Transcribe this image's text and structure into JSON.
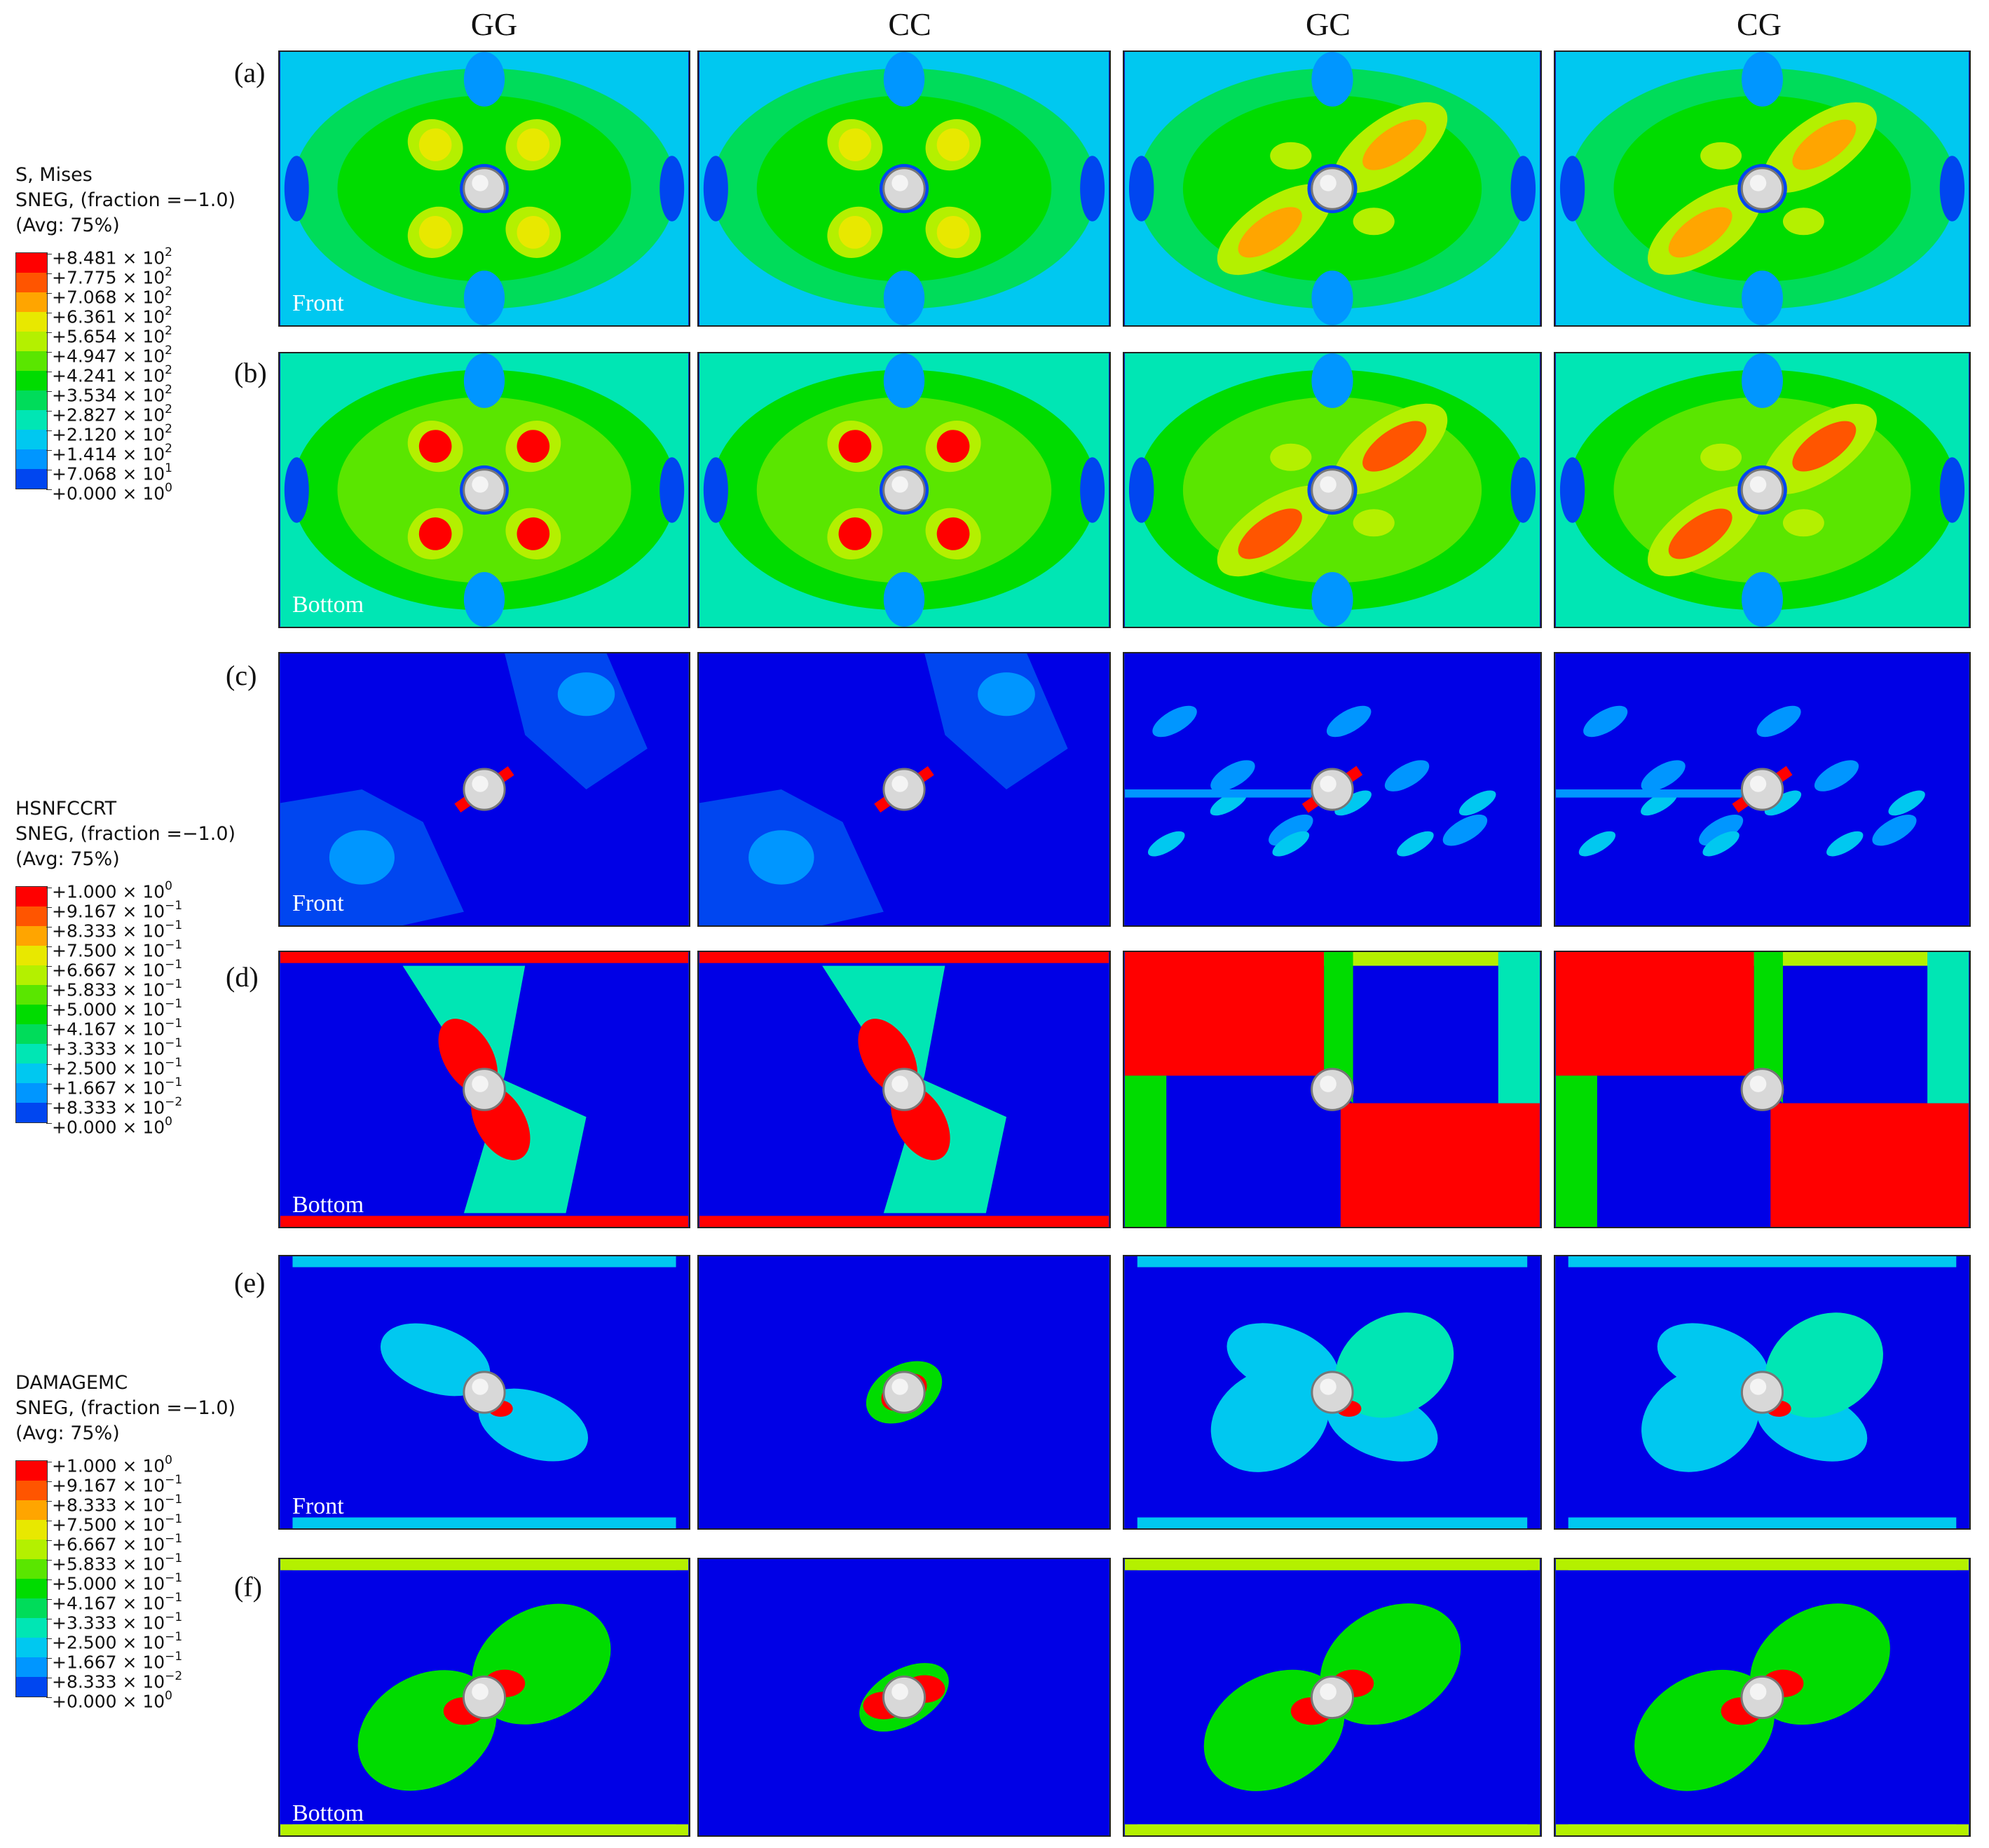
{
  "columns": [
    "GG",
    "CC",
    "GC",
    "CG"
  ],
  "rows": [
    {
      "label": "(a)",
      "face": "Front",
      "field": "mises"
    },
    {
      "label": "(b)",
      "face": "Bottom",
      "field": "mises"
    },
    {
      "label": "(c)",
      "face": "Front",
      "field": "hsn"
    },
    {
      "label": "(d)",
      "face": "Bottom",
      "field": "hsn"
    },
    {
      "label": "(e)",
      "face": "Front",
      "field": "dmg"
    },
    {
      "label": "(f)",
      "face": "Bottom",
      "field": "dmg"
    }
  ],
  "legends": [
    {
      "title_lines": [
        "S, Mises",
        "SNEG, (fraction =−1.0)",
        "(Avg: 75%)"
      ],
      "entries": [
        {
          "m": "+8.481",
          "e": "2"
        },
        {
          "m": "+7.775",
          "e": "2"
        },
        {
          "m": "+7.068",
          "e": "2"
        },
        {
          "m": "+6.361",
          "e": "2"
        },
        {
          "m": "+5.654",
          "e": "2"
        },
        {
          "m": "+4.947",
          "e": "2"
        },
        {
          "m": "+4.241",
          "e": "2"
        },
        {
          "m": "+3.534",
          "e": "2"
        },
        {
          "m": "+2.827",
          "e": "2"
        },
        {
          "m": "+2.120",
          "e": "2"
        },
        {
          "m": "+1.414",
          "e": "2"
        },
        {
          "m": "+7.068",
          "e": "1"
        },
        {
          "m": "+0.000",
          "e": "0"
        }
      ]
    },
    {
      "title_lines": [
        "HSNFCCRT",
        "SNEG, (fraction =−1.0)",
        "(Avg: 75%)"
      ],
      "entries": [
        {
          "m": "+1.000",
          "e": "0"
        },
        {
          "m": "+9.167",
          "e": "−1"
        },
        {
          "m": "+8.333",
          "e": "−1"
        },
        {
          "m": "+7.500",
          "e": "−1"
        },
        {
          "m": "+6.667",
          "e": "−1"
        },
        {
          "m": "+5.833",
          "e": "−1"
        },
        {
          "m": "+5.000",
          "e": "−1"
        },
        {
          "m": "+4.167",
          "e": "−1"
        },
        {
          "m": "+3.333",
          "e": "−1"
        },
        {
          "m": "+2.500",
          "e": "−1"
        },
        {
          "m": "+1.667",
          "e": "−1"
        },
        {
          "m": "+8.333",
          "e": "−2"
        },
        {
          "m": "+0.000",
          "e": "0"
        }
      ]
    },
    {
      "title_lines": [
        "DAMAGEMC",
        "SNEG, (fraction =−1.0)",
        "(Avg: 75%)"
      ],
      "entries": [
        {
          "m": "+1.000",
          "e": "0"
        },
        {
          "m": "+9.167",
          "e": "−1"
        },
        {
          "m": "+8.333",
          "e": "−1"
        },
        {
          "m": "+7.500",
          "e": "−1"
        },
        {
          "m": "+6.667",
          "e": "−1"
        },
        {
          "m": "+5.833",
          "e": "−1"
        },
        {
          "m": "+5.000",
          "e": "−1"
        },
        {
          "m": "+4.167",
          "e": "−1"
        },
        {
          "m": "+3.333",
          "e": "−1"
        },
        {
          "m": "+2.500",
          "e": "−1"
        },
        {
          "m": "+1.667",
          "e": "−1"
        },
        {
          "m": "+8.333",
          "e": "−2"
        },
        {
          "m": "+0.000",
          "e": "0"
        }
      ]
    }
  ],
  "colormap": [
    "#ff0000",
    "#ff5500",
    "#ffa500",
    "#e8e800",
    "#b4f000",
    "#5ae600",
    "#00dc00",
    "#00dc5a",
    "#00e6b4",
    "#00c8f0",
    "#0096ff",
    "#0046f0",
    "#0000e6"
  ]
}
